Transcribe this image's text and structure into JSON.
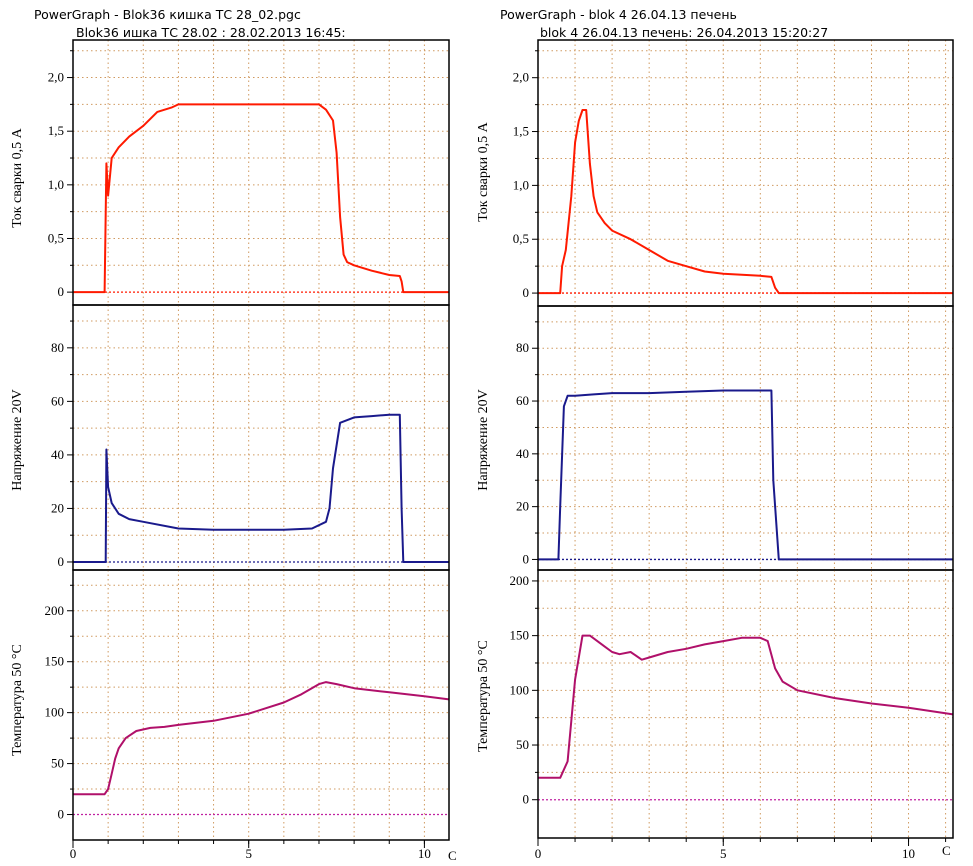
{
  "charts": [
    {
      "id": "left",
      "title_line1": "PowerGraph - Blok36 кишка ТС 28_02.pgc",
      "title_line2": "Blok36 ишка ТС 28.02 :      28.02.2013 16:45:",
      "x_ticks": [
        "0",
        "5",
        "10"
      ],
      "x_unit": "С",
      "panels": [
        {
          "ylabel": "Ток сварки 0,5 А",
          "y_ticks": [
            "0",
            "0,5",
            "1,0",
            "1,5",
            "2,0"
          ]
        },
        {
          "ylabel": "Напряжение 20V",
          "y_ticks": [
            "0",
            "20",
            "40",
            "60",
            "80"
          ]
        },
        {
          "ylabel": "Температура 50 °C",
          "y_ticks": [
            "0",
            "50",
            "100",
            "150",
            "200"
          ]
        }
      ]
    },
    {
      "id": "right",
      "title_line1": "PowerGraph - blok 4 26.04.13 печень",
      "title_line2": "blok 4 26.04.13 печень:      26.04.2013 15:20:27",
      "x_ticks": [
        "0",
        "5",
        "10"
      ],
      "x_unit": "С",
      "panels": [
        {
          "ylabel": "Ток сварки 0,5 А",
          "y_ticks": [
            "0",
            "0,5",
            "1,0",
            "1,5",
            "2,0"
          ]
        },
        {
          "ylabel": "Напряжение 20V",
          "y_ticks": [
            "0",
            "20",
            "40",
            "60",
            "80"
          ]
        },
        {
          "ylabel": "Температура 50 °C",
          "y_ticks": [
            "0",
            "50",
            "100",
            "150",
            "200"
          ]
        }
      ]
    }
  ],
  "colors": {
    "current": "#ff1a00",
    "voltage": "#1a1a8c",
    "temperature": "#b0106a",
    "zero_current": "#ff1a00",
    "zero_voltage": "#1a1a8c",
    "zero_temperature": "#c020a0",
    "grid": "#d09a60",
    "frame": "#000000"
  },
  "chart_data": [
    {
      "type": "line",
      "title": "PowerGraph - Blok36 кишка ТС 28_02.pgc",
      "xlabel": "С",
      "xlim": [
        0,
        10.7
      ],
      "panels": [
        {
          "ylabel": "Ток сварки 0,5 А",
          "ylim": [
            -0.12,
            2.35
          ],
          "series": [
            {
              "x": [
                0,
                0.9,
                0.95,
                1.0,
                1.1,
                1.3,
                1.6,
                2.0,
                2.4,
                2.8,
                3.0,
                4.0,
                5.0,
                6.0,
                6.5,
                7.0,
                7.2,
                7.4,
                7.5,
                7.6,
                7.7,
                7.8,
                8.0,
                8.5,
                9.0,
                9.3,
                9.35,
                9.4,
                10.7
              ],
              "y": [
                0,
                0,
                1.2,
                0.9,
                1.25,
                1.35,
                1.45,
                1.55,
                1.68,
                1.72,
                1.75,
                1.75,
                1.75,
                1.75,
                1.75,
                1.75,
                1.7,
                1.6,
                1.3,
                0.7,
                0.35,
                0.28,
                0.25,
                0.2,
                0.16,
                0.15,
                0.1,
                0,
                0
              ]
            }
          ]
        },
        {
          "ylabel": "Напряжение 20V",
          "ylim": [
            -3,
            96
          ],
          "series": [
            {
              "x": [
                0,
                0.93,
                0.95,
                1.0,
                1.1,
                1.3,
                1.6,
                2.0,
                3.0,
                4.0,
                5.0,
                6.0,
                6.8,
                7.2,
                7.3,
                7.4,
                7.6,
                8.0,
                8.5,
                9.0,
                9.3,
                9.35,
                9.4,
                10.7
              ],
              "y": [
                0,
                0,
                42,
                28,
                22,
                18,
                16,
                15,
                12.5,
                12,
                12,
                12,
                12.5,
                15,
                20,
                35,
                52,
                54,
                54.5,
                55,
                55,
                20,
                0,
                0
              ]
            }
          ]
        },
        {
          "ylabel": "Температура 50 °C",
          "ylim": [
            -25,
            240
          ],
          "series": [
            {
              "x": [
                0,
                0.9,
                1.0,
                1.1,
                1.2,
                1.3,
                1.5,
                1.8,
                2.2,
                2.6,
                3.0,
                4.0,
                5.0,
                6.0,
                6.5,
                7.0,
                7.2,
                7.5,
                8.0,
                9.0,
                10.0,
                10.7
              ],
              "y": [
                20,
                20,
                25,
                40,
                55,
                65,
                75,
                82,
                85,
                86,
                88,
                92,
                99,
                110,
                118,
                128,
                130,
                128,
                124,
                120,
                116,
                113
              ]
            }
          ]
        }
      ]
    },
    {
      "type": "line",
      "title": "PowerGraph - blok 4 26.04.13 печень",
      "xlabel": "С",
      "xlim": [
        0,
        11.2
      ],
      "panels": [
        {
          "ylabel": "Ток сварки 0,5 А",
          "ylim": [
            -0.12,
            2.35
          ],
          "series": [
            {
              "x": [
                0,
                0.6,
                0.65,
                0.75,
                0.9,
                1.0,
                1.1,
                1.2,
                1.3,
                1.4,
                1.5,
                1.6,
                1.8,
                2.0,
                2.5,
                3.0,
                3.5,
                4.0,
                4.5,
                5.0,
                5.5,
                6.0,
                6.3,
                6.4,
                6.5,
                11.2
              ],
              "y": [
                0,
                0,
                0.25,
                0.4,
                0.9,
                1.4,
                1.6,
                1.7,
                1.7,
                1.2,
                0.9,
                0.75,
                0.65,
                0.58,
                0.5,
                0.4,
                0.3,
                0.25,
                0.2,
                0.18,
                0.17,
                0.16,
                0.15,
                0.05,
                0,
                0
              ]
            }
          ]
        },
        {
          "ylabel": "Напряжение 20V",
          "ylim": [
            -4,
            96
          ],
          "series": [
            {
              "x": [
                0,
                0.55,
                0.6,
                0.7,
                0.8,
                1.0,
                1.5,
                2.0,
                3.0,
                4.0,
                5.0,
                6.0,
                6.3,
                6.35,
                6.5,
                11.2
              ],
              "y": [
                0,
                0,
                20,
                58,
                62,
                62,
                62.5,
                63,
                63,
                63.5,
                64,
                64,
                64,
                30,
                0,
                0
              ]
            }
          ]
        },
        {
          "ylabel": "Температура 50 °C",
          "ylim": [
            -35,
            210
          ],
          "series": [
            {
              "x": [
                0,
                0.6,
                0.8,
                1.0,
                1.2,
                1.4,
                1.6,
                1.8,
                2.0,
                2.2,
                2.5,
                2.8,
                3.0,
                3.5,
                4.0,
                4.5,
                5.0,
                5.5,
                6.0,
                6.2,
                6.4,
                6.6,
                7.0,
                8.0,
                9.0,
                10.0,
                11.2
              ],
              "y": [
                20,
                20,
                35,
                110,
                150,
                150,
                145,
                140,
                135,
                133,
                135,
                128,
                130,
                135,
                138,
                142,
                145,
                148,
                148,
                145,
                120,
                108,
                100,
                93,
                88,
                84,
                78
              ]
            }
          ]
        }
      ]
    }
  ]
}
